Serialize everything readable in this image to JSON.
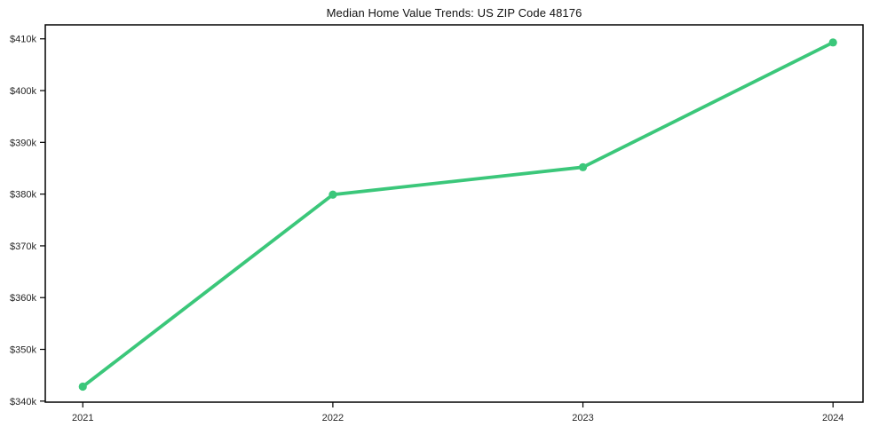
{
  "chart_data": {
    "type": "line",
    "title": "Median Home Value Trends: US ZIP Code 48176",
    "xlabel": "",
    "ylabel": "",
    "x": [
      2021,
      2022,
      2023,
      2024
    ],
    "x_tick_labels": [
      "2021",
      "2022",
      "2023",
      "2024"
    ],
    "series": [
      {
        "name": "Median Home Value",
        "values_usd": [
          342800,
          379900,
          385200,
          409300
        ]
      }
    ],
    "y_ticks_k": [
      340,
      350,
      360,
      370,
      380,
      390,
      400,
      410
    ],
    "y_tick_labels": [
      "$340k",
      "$350k",
      "$360k",
      "$370k",
      "$380k",
      "$390k",
      "$400k",
      "$410k"
    ],
    "xlim": [
      2020.85,
      2024.12
    ],
    "ylim_k": [
      339.8,
      412.7
    ],
    "grid": false,
    "legend_position": "none",
    "colors": {
      "line": "#3bc77a",
      "marker": "#3bc77a",
      "axis": "#000000",
      "tick_label": "#262626",
      "title": "#111111",
      "background": "#ffffff"
    }
  }
}
